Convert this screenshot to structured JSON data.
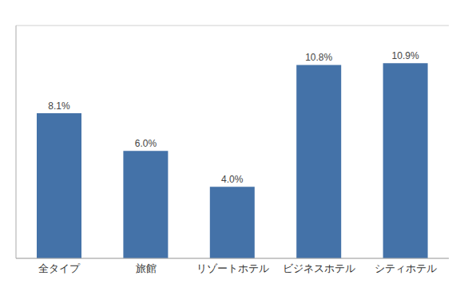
{
  "chart_data": {
    "type": "bar",
    "categories": [
      "全タイプ",
      "旅館",
      "リゾートホテル",
      "ビジネスホテル",
      "シティホテル"
    ],
    "values": [
      8.1,
      6.0,
      4.0,
      10.8,
      10.9
    ],
    "value_labels": [
      "8.1%",
      "6.0%",
      "4.0%",
      "10.8%",
      "10.9%"
    ],
    "data_labels": true,
    "color": "#4472a8",
    "ylim": [
      0,
      13
    ],
    "yticks": [
      0,
      2,
      4,
      6,
      8,
      10,
      12
    ],
    "grid": true,
    "tick_labels": "x"
  }
}
